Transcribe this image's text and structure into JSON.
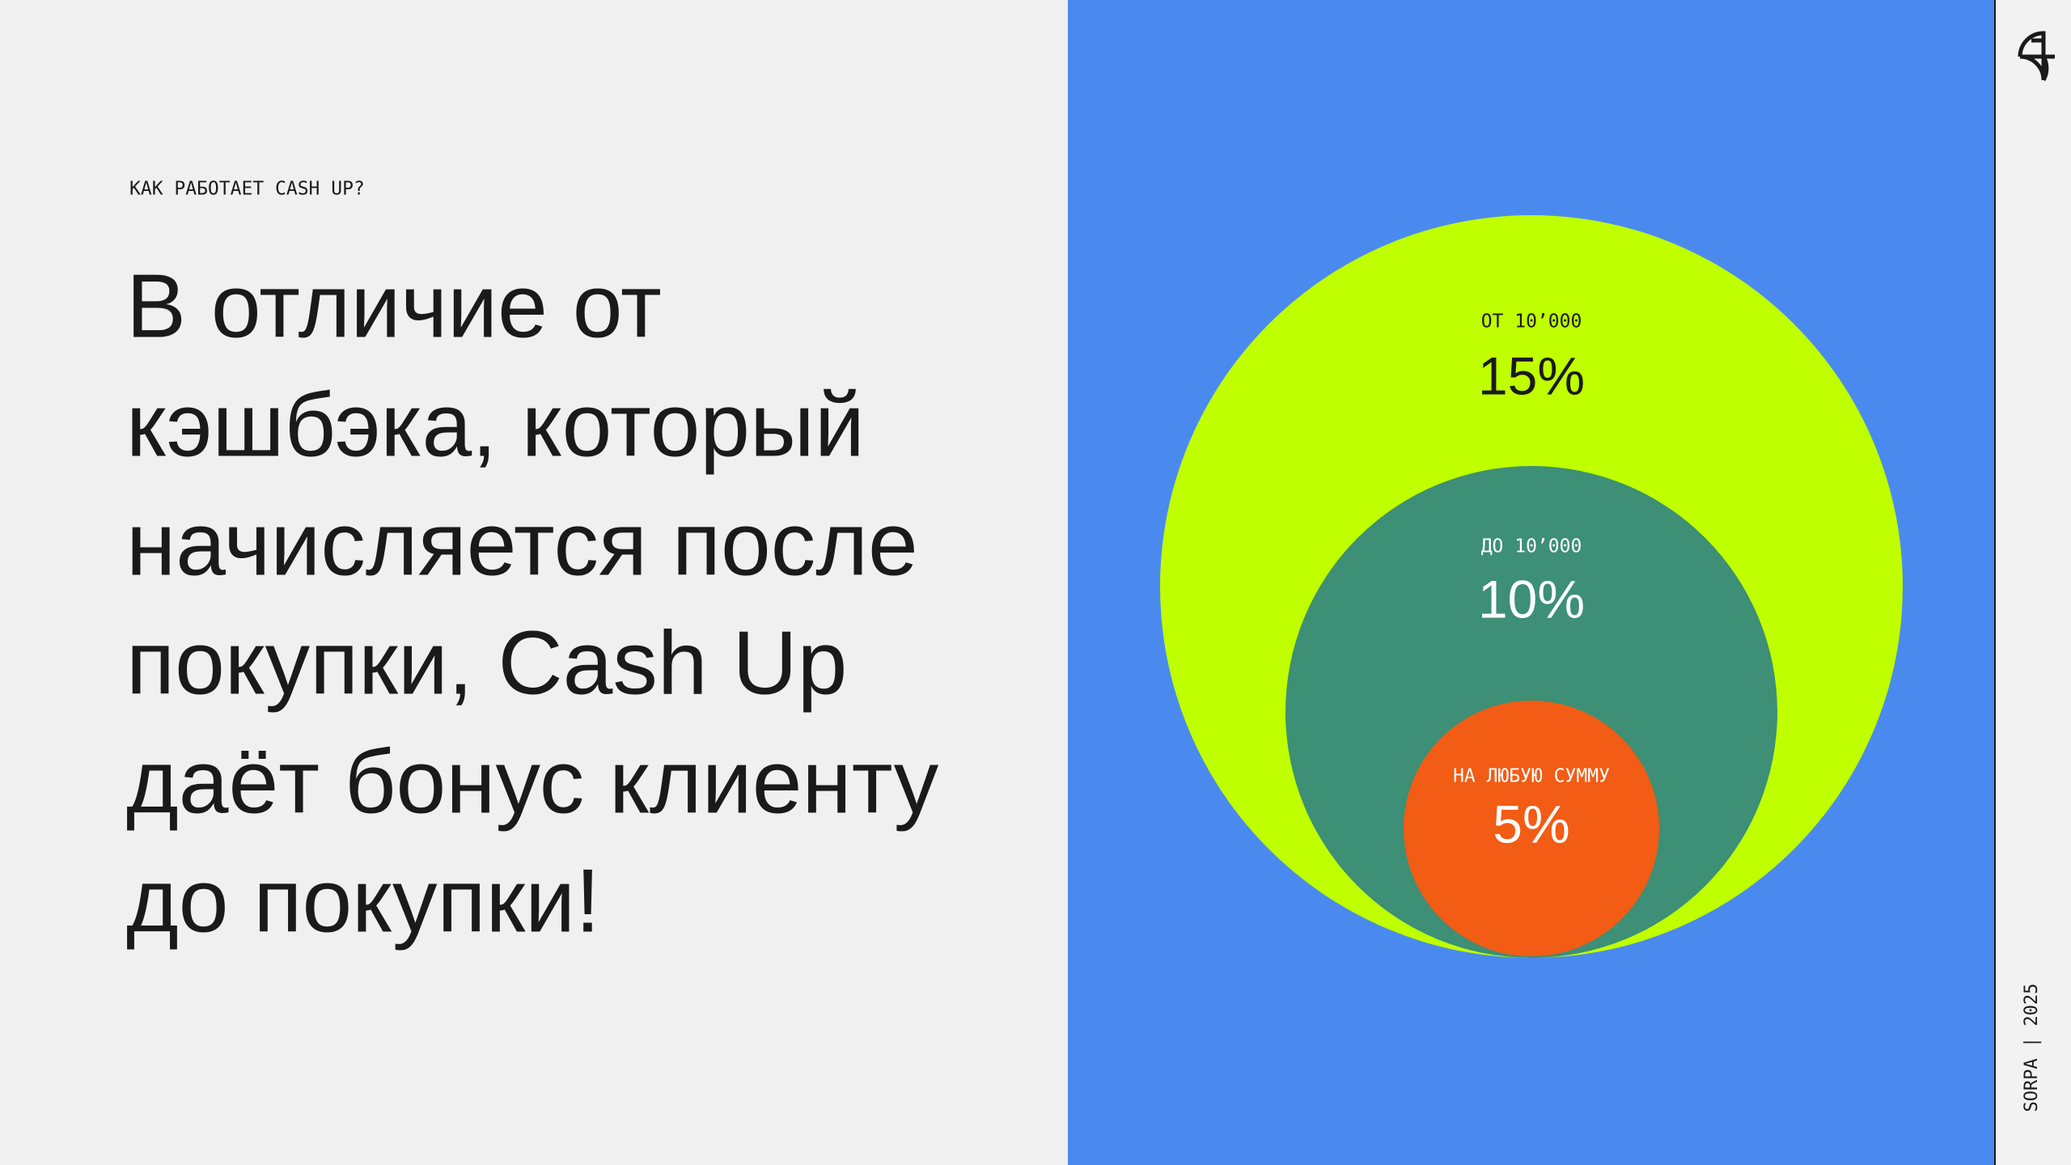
{
  "header": {
    "eyebrow": "КАК РАБОТАЕТ CASH UP?"
  },
  "headline": {
    "lines": [
      "В отличие от",
      "кэшбэка, который",
      "начисляется после",
      "покупки, Cash Up",
      "даёт бонус клиенту",
      "до покупки!"
    ]
  },
  "tiers": [
    {
      "label": "ОТ 10’000",
      "rate": "15%"
    },
    {
      "label": "ДО 10’000",
      "rate": "10%"
    },
    {
      "label": "НА ЛЮБУЮ СУММУ",
      "rate": "5%"
    }
  ],
  "footer": {
    "brand": "SORPA | 2025"
  }
}
